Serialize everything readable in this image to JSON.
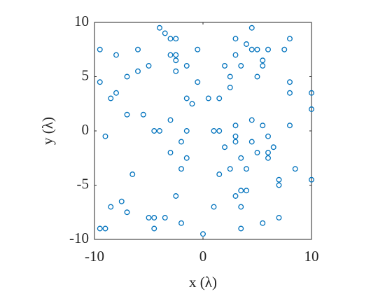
{
  "chart_data": {
    "type": "scatter",
    "x_label": "x (λ)",
    "y_label": "y (λ)",
    "color": "#0072bd",
    "xlim": [
      -10,
      10
    ],
    "ylim": [
      -10,
      10
    ],
    "xticks": [
      -10,
      0,
      10
    ],
    "yticks": [
      -10,
      -5,
      0,
      5,
      10
    ],
    "x": [
      -9.5,
      -9.5,
      -8,
      -4,
      -3.5,
      -3,
      -2.5,
      -6,
      -3,
      -2.5,
      -2.5,
      -5,
      -1.5,
      -6,
      -7,
      -2.5,
      -0.5,
      -0.5,
      -8,
      -8.5,
      -1.5,
      -1,
      0.5,
      1.5,
      3,
      4.5,
      4,
      4.5,
      5,
      6,
      3,
      5.5,
      5.5,
      3.5,
      2,
      2.5,
      5,
      2.5,
      8,
      7.5,
      8,
      8,
      10,
      10,
      -7,
      -5.5,
      -3,
      -9,
      -4.5,
      -4,
      -1.5,
      1,
      1.5,
      3,
      4.5,
      5.5,
      8,
      3,
      3,
      4.5,
      -2,
      6,
      2,
      -3,
      5,
      6,
      6.5,
      6,
      3.5,
      -1.5,
      -2,
      -6.5,
      1.5,
      2.5,
      4,
      8.5,
      7,
      7,
      10,
      3.5,
      4,
      -2.5,
      3,
      -7.5,
      -8.5,
      1,
      3.5,
      -7,
      -5,
      -4.5,
      -3.5,
      7,
      -2,
      5.5,
      -9.5,
      -9,
      -4.5,
      3.5,
      0
    ],
    "y": [
      7.5,
      4.5,
      7,
      9.5,
      9,
      8.5,
      8.5,
      7.5,
      7,
      7,
      6.5,
      6,
      6,
      5.5,
      5,
      5.5,
      7.5,
      4.5,
      3.5,
      3,
      3,
      2.5,
      3,
      3,
      8.5,
      9.5,
      8,
      7.5,
      7.5,
      7.5,
      7,
      6.5,
      6,
      6,
      6,
      5,
      5,
      4,
      8.5,
      7.5,
      4.5,
      3.5,
      3.5,
      2,
      1.5,
      1.5,
      1,
      -0.5,
      0,
      0,
      0,
      0,
      0,
      0.5,
      1,
      0.5,
      0.5,
      -0.5,
      -1,
      -1,
      -1,
      -0.5,
      -1.5,
      -2,
      -2,
      -2,
      -1.5,
      -2.5,
      -2.5,
      -2.5,
      -3.5,
      -4,
      -4,
      -3.5,
      -3.5,
      -3.5,
      -4.5,
      -5,
      -4.5,
      -5.5,
      -5.5,
      -6,
      -6,
      -6.5,
      -7,
      -7,
      -7,
      -7.5,
      -8,
      -8,
      -8,
      -8,
      -8.5,
      -8.5,
      -9,
      -9,
      -9,
      -9,
      -9.5
    ]
  }
}
